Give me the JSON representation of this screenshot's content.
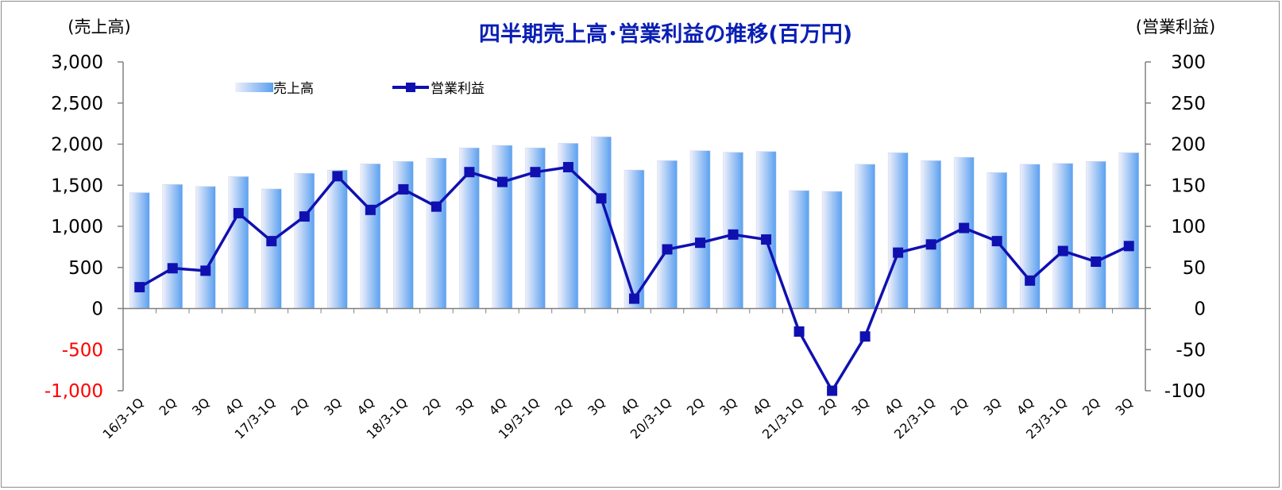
{
  "chart_data": {
    "type": "bar",
    "title": "四半期売上高･営業利益の推移(百万円)",
    "left_unit": "(売上高)",
    "right_unit": "(営業利益)",
    "categories": [
      "16/3-1Q",
      "2Q",
      "3Q",
      "4Q",
      "17/3-1Q",
      "2Q",
      "3Q",
      "4Q",
      "18/3-1Q",
      "2Q",
      "3Q",
      "4Q",
      "19/3-1Q",
      "2Q",
      "3Q",
      "4Q",
      "20/3-1Q",
      "2Q",
      "3Q",
      "4Q",
      "21/3-1Q",
      "2Q",
      "3Q",
      "4Q",
      "22/3-1Q",
      "2Q",
      "3Q",
      "4Q",
      "23/3-1Q",
      "2Q",
      "3Q"
    ],
    "series": [
      {
        "name": "売上高",
        "type": "bar",
        "axis": "left",
        "values": [
          1410,
          1510,
          1485,
          1605,
          1455,
          1645,
          1685,
          1760,
          1790,
          1830,
          1955,
          1985,
          1955,
          2010,
          2090,
          1685,
          1800,
          1920,
          1900,
          1910,
          1435,
          1425,
          1755,
          1895,
          1800,
          1840,
          1655,
          1755,
          1765,
          1790,
          1895
        ]
      },
      {
        "name": "営業利益",
        "type": "line",
        "axis": "right",
        "values": [
          26,
          49,
          46,
          116,
          82,
          112,
          161,
          120,
          145,
          124,
          166,
          154,
          166,
          172,
          134,
          12,
          72,
          80,
          90,
          84,
          -28,
          -100,
          -34,
          68,
          78,
          98,
          82,
          34,
          70,
          57,
          76
        ]
      }
    ],
    "y_left": {
      "min": -1000,
      "max": 3000,
      "step": 500,
      "ticks": [
        "3,000",
        "2,500",
        "2,000",
        "1,500",
        "1,000",
        "500",
        "0",
        "-500",
        "-1,000"
      ]
    },
    "y_right": {
      "min": -100,
      "max": 300,
      "step": 50,
      "ticks": [
        "300",
        "250",
        "200",
        "150",
        "100",
        "50",
        "0",
        "-50",
        "-100"
      ]
    },
    "legend": {
      "position": "top-left"
    },
    "grid": false,
    "colors": {
      "bar_light": "#e8e8f6",
      "bar_dark": "#5aa0f0",
      "line": "#1010b0",
      "title": "#0a1fb4",
      "negative_tick": "#ff0000"
    }
  }
}
